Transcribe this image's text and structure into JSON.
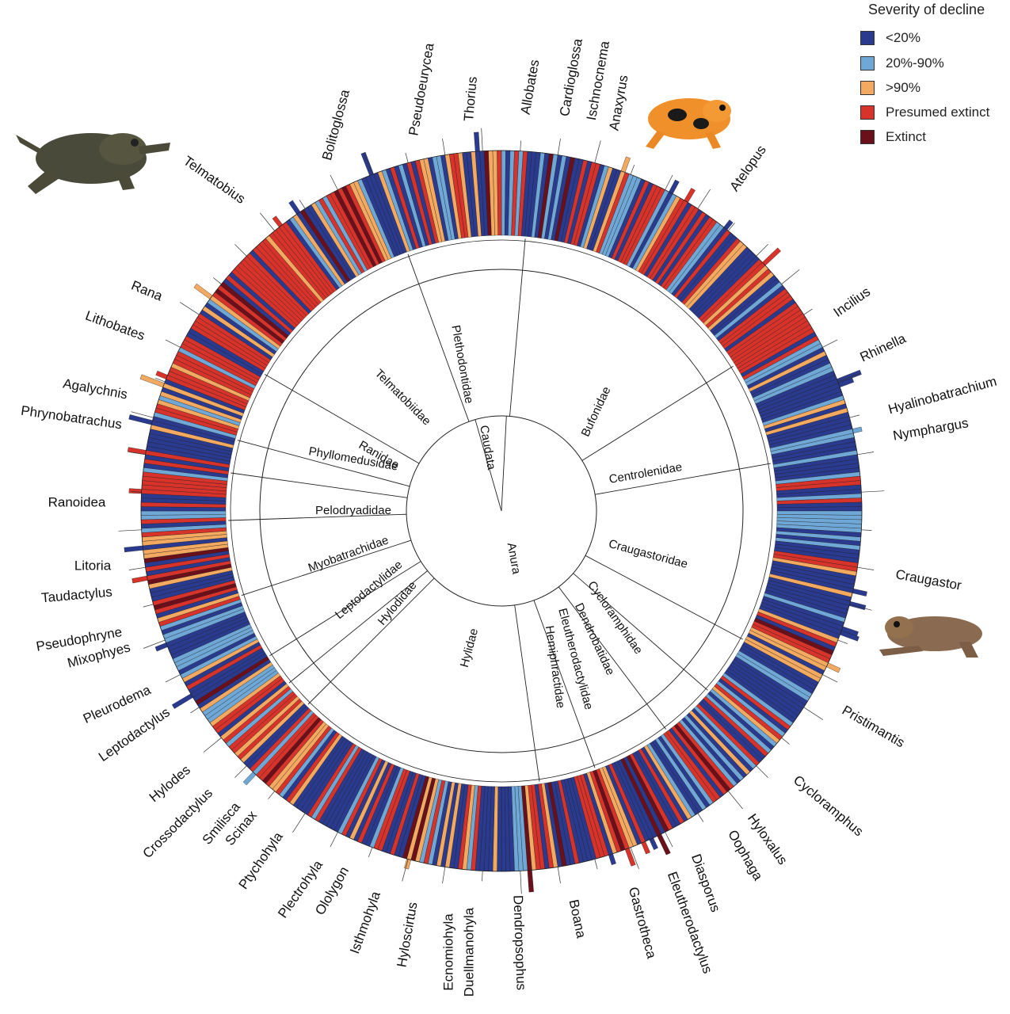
{
  "legend": {
    "title": "Severity of decline",
    "items": [
      {
        "key": "lt20",
        "label": "<20%",
        "color": "#2a3a8f"
      },
      {
        "key": "mid",
        "label": "20%-90%",
        "color": "#6fa8d6"
      },
      {
        "key": "gt90",
        "label": ">90%",
        "color": "#f3a960"
      },
      {
        "key": "presumed",
        "label": "Presumed extinct",
        "color": "#d8332a"
      },
      {
        "key": "extinct",
        "label": "Extinct",
        "color": "#6b0f1a"
      }
    ]
  },
  "orders": [
    "Caudata",
    "Anura"
  ],
  "families": [
    "Plethodontidae",
    "Bufonidae",
    "Centrolenidae",
    "Craugastoridae",
    "Cycloramphidae",
    "Dendrobatidae",
    "Eleutherodactylidae",
    "Hemiphractidae",
    "Hylidae",
    "Hylodidae",
    "Leptodactylidae",
    "Myobatrachidae",
    "Pelodryadidae",
    "Phyllomedusidae",
    "Ranidae",
    "Telmatobiidae"
  ],
  "genera": [
    "Allobates",
    "Cardioglossa",
    "Ischnocnema",
    "Anaxyrus",
    "Atelopus",
    "Incilius",
    "Rhinella",
    "Hyalinobatrachium",
    "Nymphargus",
    "Craugastor",
    "Pristimantis",
    "Cycloramphus",
    "Hyloxalus",
    "Oophaga",
    "Diasporus",
    "Eleutherodactylus",
    "Gastrotheca",
    "Boana",
    "Dendropsophus",
    "Duellmanohyla",
    "Ecnomiohyla",
    "Hyloscirtus",
    "Isthmohyla",
    "Ololygon",
    "Plectrohyla",
    "Ptychohyla",
    "Scinax",
    "Smilisca",
    "Crossodactylus",
    "Hylodes",
    "Leptodactylus",
    "Pleurodema",
    "Mixophyes",
    "Pseudophryne",
    "Taudactylus",
    "Litoria",
    "Ranoidea",
    "Phrynobatrachus",
    "Agalychnis",
    "Lithobates",
    "Rana",
    "Telmatobius",
    "Bolitoglossa",
    "Pseudoeurycea",
    "Thorius"
  ]
}
